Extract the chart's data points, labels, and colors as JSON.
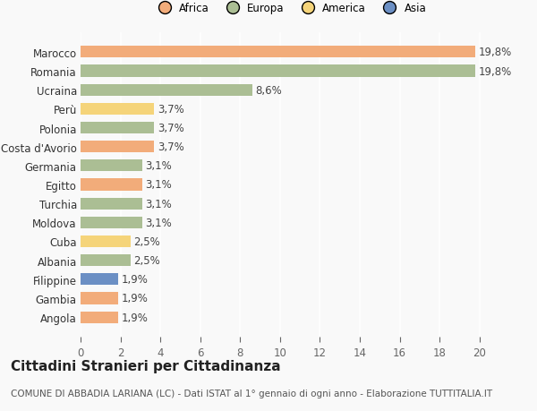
{
  "categories": [
    "Angola",
    "Gambia",
    "Filippine",
    "Albania",
    "Cuba",
    "Moldova",
    "Turchia",
    "Egitto",
    "Germania",
    "Costa d'Avorio",
    "Polonia",
    "Perù",
    "Ucraina",
    "Romania",
    "Marocco"
  ],
  "values": [
    1.9,
    1.9,
    1.9,
    2.5,
    2.5,
    3.1,
    3.1,
    3.1,
    3.1,
    3.7,
    3.7,
    3.7,
    8.6,
    19.8,
    19.8
  ],
  "labels": [
    "1,9%",
    "1,9%",
    "1,9%",
    "2,5%",
    "2,5%",
    "3,1%",
    "3,1%",
    "3,1%",
    "3,1%",
    "3,7%",
    "3,7%",
    "3,7%",
    "8,6%",
    "19,8%",
    "19,8%"
  ],
  "continents": [
    "Africa",
    "Africa",
    "Asia",
    "Europa",
    "America",
    "Europa",
    "Europa",
    "Africa",
    "Europa",
    "Africa",
    "Europa",
    "America",
    "Europa",
    "Europa",
    "Africa"
  ],
  "colors": {
    "Africa": "#F2AC7A",
    "Europa": "#ABBE94",
    "America": "#F5D47A",
    "Asia": "#6B8FC4"
  },
  "legend_labels": [
    "Africa",
    "Europa",
    "America",
    "Asia"
  ],
  "legend_colors": [
    "#F2AC7A",
    "#ABBE94",
    "#F5D47A",
    "#6B8FC4"
  ],
  "title": "Cittadini Stranieri per Cittadinanza",
  "subtitle": "COMUNE DI ABBADIA LARIANA (LC) - Dati ISTAT al 1° gennaio di ogni anno - Elaborazione TUTTITALIA.IT",
  "xlim": [
    0,
    21
  ],
  "xticks": [
    0,
    2,
    4,
    6,
    8,
    10,
    12,
    14,
    16,
    18,
    20
  ],
  "background_color": "#f9f9f9",
  "bar_height": 0.62,
  "label_fontsize": 8.5,
  "tick_fontsize": 8.5,
  "title_fontsize": 11,
  "subtitle_fontsize": 7.5
}
